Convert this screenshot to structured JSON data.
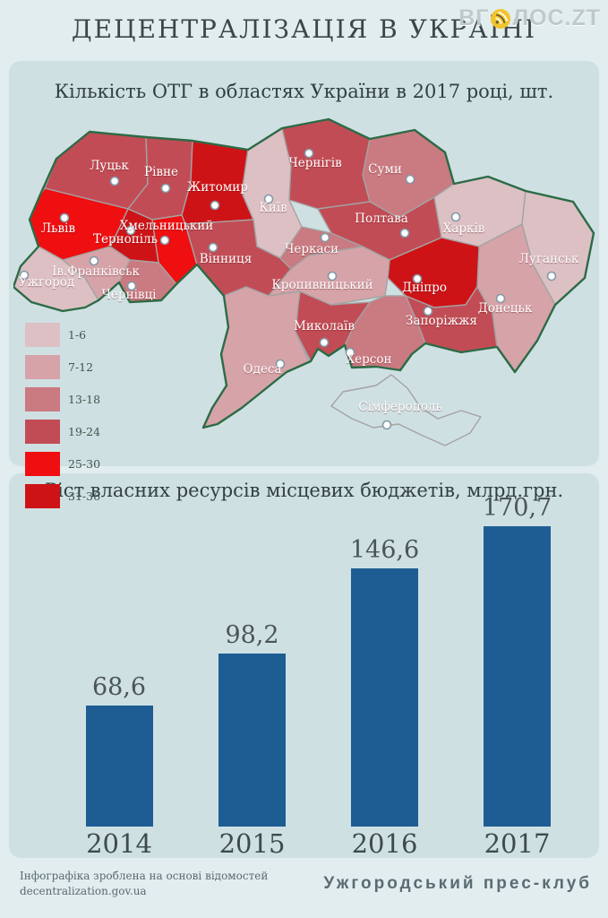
{
  "page_title": "ДЕЦЕНТРАЛІЗАЦІЯ В УКРАЇНІ",
  "logo": {
    "text_before": "ВГ",
    "text_after": "ЛОС.ZT",
    "icon": "radio-waves-icon",
    "icon_color": "#f0c42c",
    "text_color": "#bfc9cc"
  },
  "map_panel": {
    "title": "Кількість ОТГ в областях України в 2017 році, шт.",
    "legend": [
      {
        "label": "1-6",
        "color": "#dcc0c4"
      },
      {
        "label": "7-12",
        "color": "#d6a3a9"
      },
      {
        "label": "13-18",
        "color": "#ca7a81"
      },
      {
        "label": "19-24",
        "color": "#c24c55"
      },
      {
        "label": "25-30",
        "color": "#ef0e10"
      },
      {
        "label": "31-36",
        "color": "#ce1317"
      }
    ],
    "regions": [
      {
        "id": "lutsk",
        "name": "Луцьк",
        "otg_range": "19-24"
      },
      {
        "id": "rivne",
        "name": "Рівне",
        "otg_range": "19-24"
      },
      {
        "id": "zhytomyr",
        "name": "Житомир",
        "otg_range": "31-36"
      },
      {
        "id": "kyiv",
        "name": "Київ",
        "otg_range": "1-6"
      },
      {
        "id": "chernihiv",
        "name": "Чернігів",
        "otg_range": "19-24"
      },
      {
        "id": "sumy",
        "name": "Суми",
        "otg_range": "13-18"
      },
      {
        "id": "lviv",
        "name": "Львів",
        "otg_range": "25-30"
      },
      {
        "id": "ternopil",
        "name": "Тернопіль",
        "otg_range": "31-36"
      },
      {
        "id": "khmelnytskyi",
        "name": "Хмельницький",
        "otg_range": "25-30"
      },
      {
        "id": "vinnytsia",
        "name": "Вінниця",
        "otg_range": "19-24"
      },
      {
        "id": "cherkasy",
        "name": "Черкаси",
        "otg_range": "13-18"
      },
      {
        "id": "poltava",
        "name": "Полтава",
        "otg_range": "19-24"
      },
      {
        "id": "kharkiv",
        "name": "Харків",
        "otg_range": "1-6"
      },
      {
        "id": "luhansk",
        "name": "Луганськ",
        "otg_range": "1-6"
      },
      {
        "id": "donetsk",
        "name": "Донецьк",
        "otg_range": "7-12"
      },
      {
        "id": "dnipro",
        "name": "Дніпро",
        "otg_range": "31-36"
      },
      {
        "id": "zaporizhzhia",
        "name": "Запоріжжя",
        "otg_range": "19-24"
      },
      {
        "id": "kherson",
        "name": "Херсон",
        "otg_range": "13-18"
      },
      {
        "id": "mykolaiv",
        "name": "Миколаїв",
        "otg_range": "19-24"
      },
      {
        "id": "kirovohrad",
        "name": "Кропивницький",
        "otg_range": "7-12"
      },
      {
        "id": "odesa",
        "name": "Одеса",
        "otg_range": "7-12"
      },
      {
        "id": "ivano-frankivsk",
        "name": "Ів.Франківськ",
        "otg_range": "7-12"
      },
      {
        "id": "zakarpattia",
        "name": "Ужгород",
        "otg_range": "1-6"
      },
      {
        "id": "chernivtsi",
        "name": "Чернівці",
        "otg_range": "13-18"
      },
      {
        "id": "crimea",
        "name": "Сімферополь",
        "otg_range": null
      }
    ]
  },
  "chart_data": {
    "type": "bar",
    "title": "Ріст власних ресурсів місцевих бюджетів, млрд.грн.",
    "categories": [
      "2014",
      "2015",
      "2016",
      "2017"
    ],
    "values": [
      68.6,
      98.2,
      146.6,
      170.7
    ],
    "value_labels": [
      "68,6",
      "98,2",
      "146,6",
      "170,7"
    ],
    "bar_color": "#1e5d94",
    "xlabel": "",
    "ylabel": "млрд.грн.",
    "ylim": [
      0,
      180
    ],
    "grid": false,
    "legend_position": "none"
  },
  "footer": {
    "source_line1": "Інфографіка зроблена на основі відомостей",
    "source_line2": "decentralization.gov.ua",
    "author": "Ужгородський прес-клуб"
  }
}
